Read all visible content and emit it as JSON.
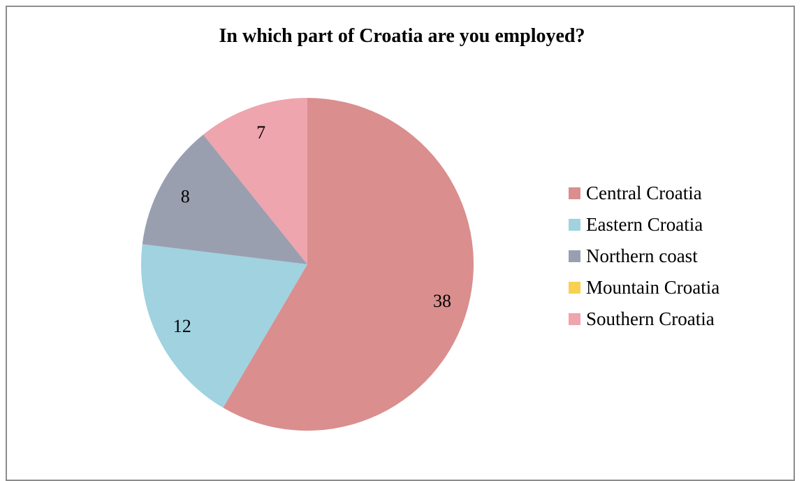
{
  "chart_data": {
    "type": "pie",
    "title": "In which part of Croatia are you employed?",
    "categories": [
      "Central Croatia",
      "Eastern Croatia",
      "Northern coast",
      "Mountain Croatia",
      "Southern Croatia"
    ],
    "values": [
      38,
      12,
      8,
      0,
      7
    ],
    "data_labels": [
      "38",
      "12",
      "8",
      "",
      "7"
    ],
    "colors": [
      "#DA8E8E",
      "#A0D2E0",
      "#9A9FB0",
      "#F9D050",
      "#EEA5AE"
    ],
    "legend_position": "right"
  }
}
